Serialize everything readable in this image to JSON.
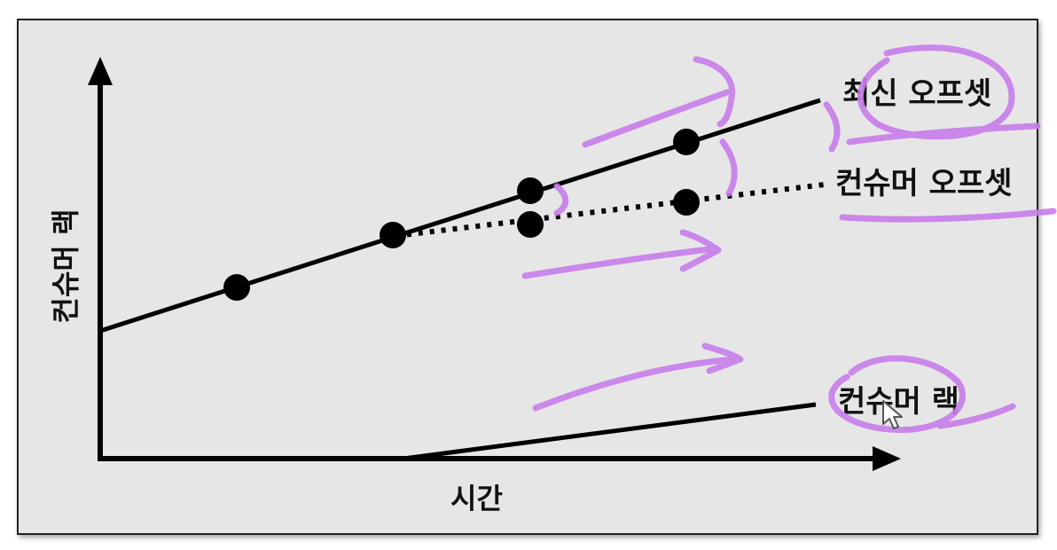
{
  "diagram": {
    "axis_y_label": "컨슈머 랙",
    "axis_x_label": "시간",
    "lines": {
      "latest_offset": {
        "label": "최신 오프셋",
        "style": "solid"
      },
      "consumer_offset": {
        "label": "컨슈머 오프셋",
        "style": "dotted"
      },
      "consumer_lag": {
        "label": "컨슈머 랙",
        "style": "solid"
      }
    }
  },
  "colors": {
    "panel_background": "#e6e6e6",
    "panel_border": "#222222",
    "ink": "#000000",
    "annotation": "#c77dea"
  },
  "icons": {
    "pointer": "mouse-cursor-icon"
  }
}
